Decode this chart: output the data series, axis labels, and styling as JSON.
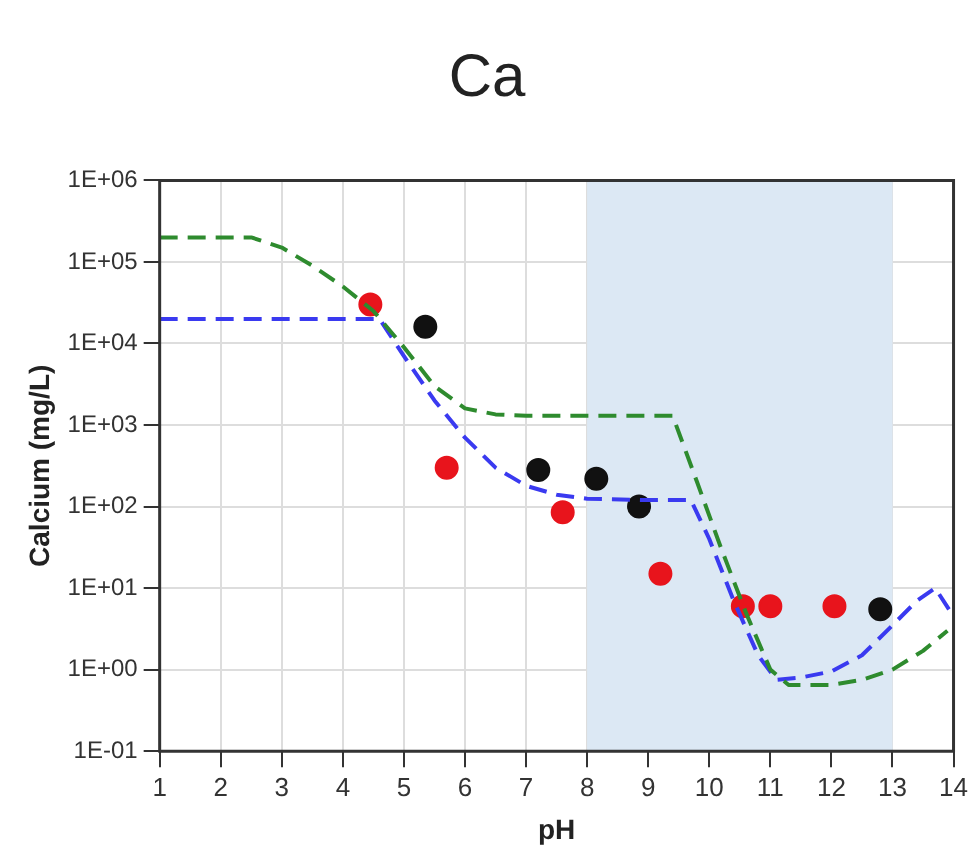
{
  "chart_data": {
    "type": "scatter",
    "title": "Ca",
    "xlabel": "pH",
    "ylabel": "Calcium (mg/L)",
    "log": "y",
    "grid": true,
    "legend": false,
    "xlim": [
      1,
      14
    ],
    "xticks": [
      1,
      2,
      3,
      4,
      5,
      6,
      7,
      8,
      9,
      10,
      11,
      12,
      13,
      14
    ],
    "ylim": [
      0.1,
      1000000
    ],
    "yticks": [
      {
        "value": 0.1,
        "label": "1E-01"
      },
      {
        "value": 1,
        "label": "1E+00"
      },
      {
        "value": 10,
        "label": "1E+01"
      },
      {
        "value": 100,
        "label": "1E+02"
      },
      {
        "value": 1000,
        "label": "1E+03"
      },
      {
        "value": 10000,
        "label": "1E+04"
      },
      {
        "value": 100000,
        "label": "1E+05"
      },
      {
        "value": 1000000,
        "label": "1E+06"
      }
    ],
    "bands": [
      {
        "axis": "x",
        "from": 8,
        "to": 13,
        "color": "#dce8f4"
      }
    ],
    "series": [
      {
        "type": "line",
        "color": "#2e8b2e",
        "line_style": "dashed",
        "marker": "none",
        "x": [
          1,
          2.5,
          3,
          3.5,
          4,
          4.5,
          5,
          5.5,
          6,
          6.5,
          7,
          8,
          9,
          9.4,
          9.8,
          10.2,
          10.6,
          11,
          11.3,
          12,
          12.5,
          13,
          13.5,
          13.9
        ],
        "values": [
          200000,
          200000,
          150000,
          90000,
          50000,
          25000,
          9000,
          3000,
          1600,
          1350,
          1300,
          1300,
          1300,
          1300,
          200,
          30,
          5,
          1,
          0.65,
          0.65,
          0.75,
          1,
          1.7,
          3
        ]
      },
      {
        "type": "line",
        "color": "#3a3af0",
        "line_style": "dashed",
        "marker": "none",
        "x": [
          1,
          4.6,
          5,
          5.5,
          6,
          6.5,
          7,
          7.5,
          8,
          9,
          9.7,
          10,
          10.4,
          10.8,
          11.1,
          11.5,
          12,
          12.5,
          13,
          13.4,
          13.7,
          14
        ],
        "values": [
          20000,
          20000,
          7000,
          2000,
          700,
          300,
          180,
          140,
          125,
          120,
          120,
          40,
          7,
          1.5,
          0.75,
          0.8,
          0.95,
          1.5,
          3.5,
          7,
          10,
          4.5
        ]
      },
      {
        "color": "#e8141c",
        "marker": "circle",
        "x": [
          4.45,
          5.7,
          7.6,
          9.2,
          10.55,
          11,
          12.05
        ],
        "values": [
          30000,
          300,
          85,
          15,
          6,
          6,
          6
        ]
      },
      {
        "color": "#111111",
        "marker": "circle",
        "x": [
          5.35,
          7.2,
          8.15,
          8.85,
          12.8
        ],
        "values": [
          16000,
          280,
          220,
          100,
          5.5
        ]
      }
    ]
  }
}
